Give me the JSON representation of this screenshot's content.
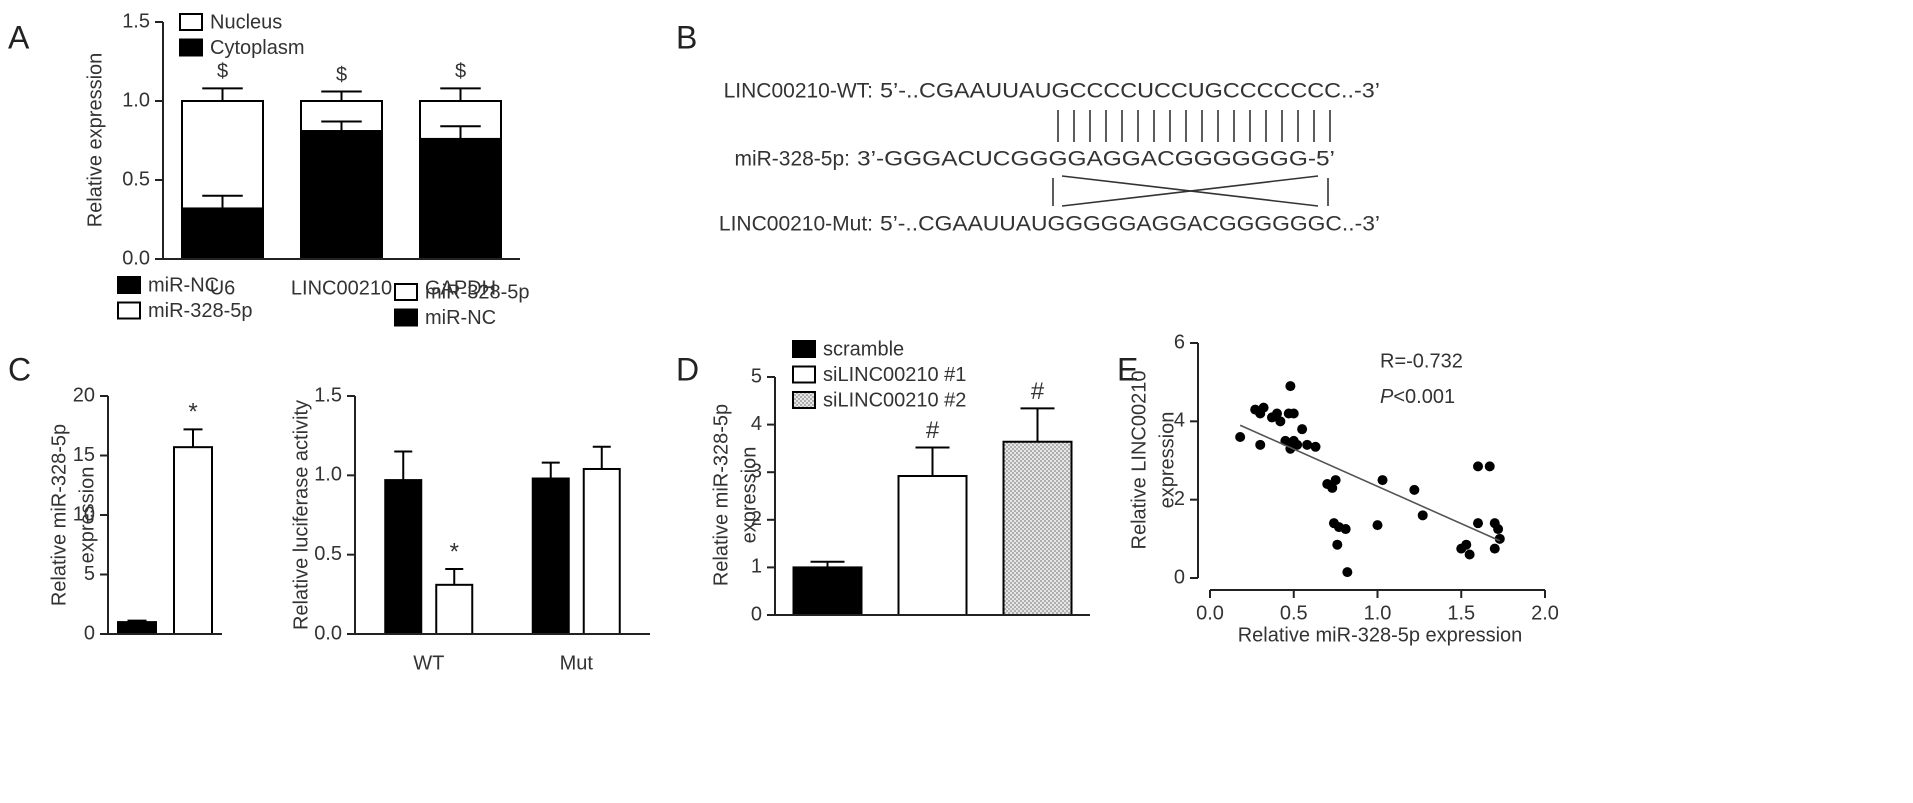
{
  "chart_data": [
    {
      "panel": "A",
      "type": "stacked_bar",
      "ylabel": "Relative expression",
      "categories": [
        "U6",
        "LINC00210",
        "GAPDH"
      ],
      "series": [
        {
          "name": "Nucleus",
          "color": "#ffffff",
          "values": [
            0.68,
            0.19,
            0.24
          ],
          "errors": [
            0.08,
            0.06,
            0.08
          ]
        },
        {
          "name": "Cytoplasm",
          "color": "#000000",
          "values": [
            0.32,
            0.81,
            0.76
          ],
          "errors": [
            0.08,
            0.06,
            0.08
          ]
        }
      ],
      "annotations": [
        "$",
        "$",
        "$"
      ],
      "ylim": [
        0,
        1.5
      ],
      "yticks": [
        {
          "value": 0,
          "label": "0.0"
        },
        0.5,
        {
          "value": 1,
          "label": "1.0"
        },
        1.5
      ]
    },
    {
      "panel": "C",
      "type": "bar",
      "ylabel": [
        "Relative miR-328-5p",
        "expression"
      ],
      "categories": [
        null
      ],
      "series": [
        {
          "name": "miR-NC",
          "color": "#000000",
          "values": [
            1.0
          ],
          "errors": [
            0.12
          ]
        },
        {
          "name": "miR-328-5p",
          "color": "#ffffff",
          "values": [
            15.7
          ],
          "errors": [
            1.5
          ]
        }
      ],
      "annotations": [
        {
          "text": "*",
          "series": 1,
          "category": 0
        }
      ],
      "ylim": [
        0,
        20
      ],
      "yticks": [
        0,
        5,
        10,
        15,
        20
      ]
    },
    {
      "type": "bar",
      "ylabel": "Relative luciferase activity",
      "categories": [
        "WT",
        "Mut"
      ],
      "series": [
        {
          "name": "miR-328-5p",
          "color": "#ffffff",
          "values": [
            0.31,
            1.04
          ],
          "errors": [
            0.1,
            0.14
          ]
        },
        {
          "name": "miR-NC",
          "color": "#000000",
          "values": [
            0.97,
            0.98
          ],
          "errors": [
            0.18,
            0.1
          ]
        }
      ],
      "annotations": [
        {
          "text": "*",
          "series": 0,
          "category": 0
        }
      ],
      "ylim": [
        0,
        1.5
      ],
      "yticks": [
        {
          "value": 0,
          "label": "0.0"
        },
        0.5,
        {
          "value": 1,
          "label": "1.0"
        },
        1.5
      ]
    },
    {
      "panel": "D",
      "type": "bar",
      "ylabel": [
        "Relative miR-328-5p",
        "expression"
      ],
      "categories": [
        null,
        null,
        null
      ],
      "series": [
        {
          "name": "scramble",
          "color": "#000000",
          "values": [
            1.0,
            null,
            null
          ],
          "errors": [
            0.12,
            null,
            null
          ]
        },
        {
          "name": "siLINC00210 #1",
          "color": "#ffffff",
          "values": [
            null,
            2.92,
            null
          ],
          "errors": [
            null,
            0.6,
            null
          ]
        },
        {
          "name": "siLINC00210 #2",
          "color": "#d4d4d4",
          "pattern": "dots",
          "values": [
            null,
            null,
            3.64
          ],
          "errors": [
            null,
            null,
            0.7
          ]
        }
      ],
      "annotations": [
        {
          "text": "#",
          "series": 1,
          "category": 1
        },
        {
          "text": "#",
          "series": 2,
          "category": 2
        }
      ],
      "ylim": [
        0,
        5
      ],
      "yticks": [
        0,
        1,
        2,
        3,
        4,
        5
      ]
    },
    {
      "panel": "E",
      "type": "scatter",
      "xlabel": "Relative miR-328-5p expression",
      "ylabel": [
        "Relative LINC00210",
        "expression"
      ],
      "x": [
        0.18,
        0.27,
        0.3,
        0.32,
        0.3,
        0.37,
        0.4,
        0.42,
        0.45,
        0.47,
        0.48,
        0.5,
        0.48,
        0.5,
        0.52,
        0.55,
        0.58,
        0.63,
        0.7,
        0.73,
        0.75,
        0.74,
        0.77,
        0.76,
        0.81,
        0.82,
        1.0,
        1.03,
        1.22,
        1.27,
        1.5,
        1.53,
        1.55,
        1.6,
        1.6,
        1.67,
        1.7,
        1.7,
        1.72,
        1.73
      ],
      "y": [
        3.6,
        4.3,
        4.2,
        4.35,
        3.4,
        4.1,
        4.2,
        4.0,
        3.5,
        4.2,
        4.9,
        4.2,
        3.3,
        3.5,
        3.4,
        3.8,
        3.4,
        3.35,
        2.4,
        2.3,
        2.5,
        1.4,
        1.3,
        0.85,
        1.25,
        0.15,
        1.35,
        2.5,
        2.25,
        1.6,
        0.75,
        0.85,
        0.6,
        1.4,
        2.85,
        2.85,
        0.75,
        1.4,
        1.25,
        1.0
      ],
      "color": "#000000",
      "trendline": {
        "x": [
          0.18,
          1.73
        ],
        "y": [
          3.9,
          0.95
        ]
      },
      "annotations": [
        "R=-0.732",
        "P<0.001"
      ],
      "xlim": [
        0,
        2
      ],
      "xticks": [
        {
          "value": 0,
          "label": "0.0"
        },
        0.5,
        {
          "value": 1,
          "label": "1.0"
        },
        1.5,
        {
          "value": 2,
          "label": "2.0"
        }
      ],
      "ylim": [
        0,
        6
      ],
      "yticks": [
        0,
        2,
        4,
        6
      ]
    }
  ],
  "sequence_panel": {
    "panel": "B",
    "rows": [
      {
        "name": "LINC00210-WT:",
        "sequence": "5’-..CGAAUUAUGCCCCUCCUGCCCCCCC..-3’"
      },
      {
        "name": "miR-328-5p:",
        "sequence": "3’-GGGACUCGGGGAGGACGGGGGGG-5’"
      },
      {
        "name": "LINC00210-Mut:",
        "sequence": "5’-..CGAAUUAUGGGGGAGGACGGGGGGC..-3’"
      }
    ]
  }
}
